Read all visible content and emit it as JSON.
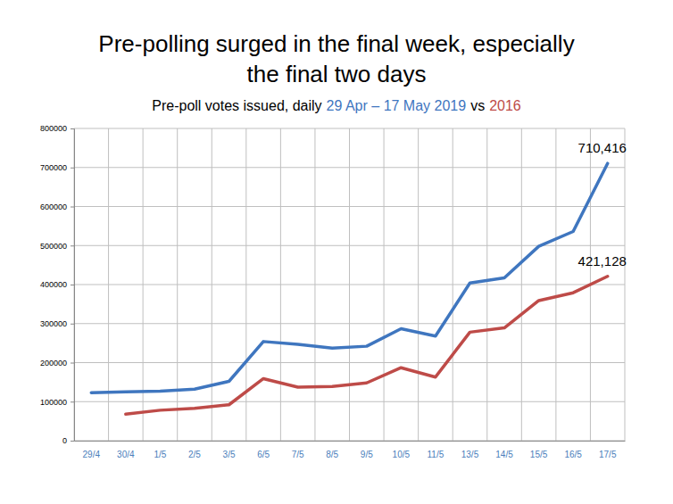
{
  "chart_data": {
    "type": "line",
    "title": [
      "Pre-polling surged in the final week, especially",
      "the final two days"
    ],
    "subtitle": [
      "Pre-poll votes issued, daily",
      "vs"
    ],
    "categories": [
      "29/4",
      "30/4",
      "1/5",
      "2/5",
      "3/5",
      "6/5",
      "7/5",
      "8/5",
      "9/5",
      "10/5",
      "11/5",
      "13/5",
      "14/5",
      "15/5",
      "16/5",
      "17/5"
    ],
    "series": [
      {
        "name": "29 Apr – 17 May 2019",
        "color": "#3f76bf",
        "values": [
          123000,
          125000,
          127000,
          132000,
          152000,
          254000,
          247000,
          237000,
          242000,
          287000,
          268000,
          404000,
          417000,
          498000,
          536000,
          710416
        ],
        "value_labels": [
          null,
          null,
          null,
          null,
          null,
          null,
          null,
          null,
          null,
          null,
          null,
          null,
          null,
          null,
          null,
          "710,416"
        ]
      },
      {
        "name": "2016",
        "color": "#be4b48",
        "values": [
          null,
          68000,
          78000,
          83000,
          92000,
          159000,
          137000,
          139000,
          148000,
          187000,
          163000,
          278000,
          289000,
          359000,
          379000,
          421128
        ],
        "value_labels": [
          null,
          null,
          null,
          null,
          null,
          null,
          null,
          null,
          null,
          null,
          null,
          null,
          null,
          null,
          null,
          "421,128"
        ]
      }
    ],
    "ylim": [
      0,
      800000
    ],
    "yticks": [
      0,
      100000,
      200000,
      300000,
      400000,
      500000,
      600000,
      700000,
      800000
    ],
    "grid": true,
    "data_labels": true
  }
}
